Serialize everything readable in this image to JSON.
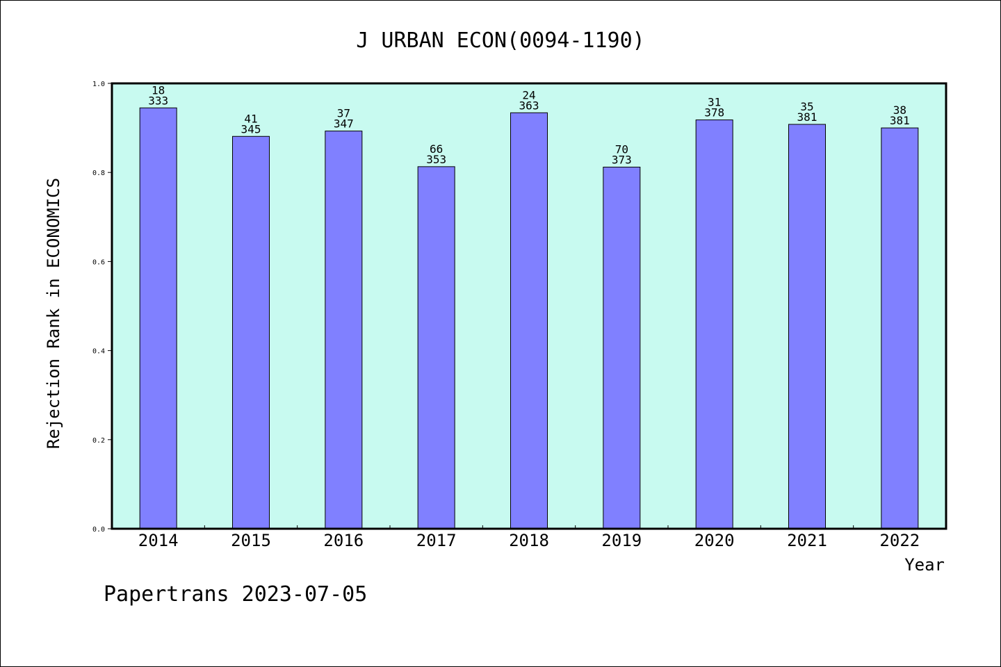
{
  "chart_data": {
    "type": "bar",
    "title": "J URBAN ECON(0094-1190)",
    "xlabel": "Year",
    "ylabel": "Rejection Rank in ECONOMICS",
    "ylim": [
      0.0,
      1.0
    ],
    "yticks": [
      "0.0",
      "0.2",
      "0.4",
      "0.6",
      "0.8",
      "1.0"
    ],
    "grid": false,
    "categories": [
      "2014",
      "2015",
      "2016",
      "2017",
      "2018",
      "2019",
      "2020",
      "2021",
      "2022"
    ],
    "values": [
      0.945,
      0.881,
      0.893,
      0.813,
      0.934,
      0.812,
      0.918,
      0.908,
      0.9
    ],
    "rank": [
      "18",
      "41",
      "37",
      "66",
      "24",
      "70",
      "31",
      "35",
      "38"
    ],
    "total": [
      "333",
      "345",
      "347",
      "353",
      "363",
      "373",
      "378",
      "381",
      "381"
    ],
    "colors": {
      "plot_background": "#c8faf0",
      "bar_fill": "#8080ff",
      "bar_stroke": "#000000"
    }
  },
  "footer": "Papertrans 2023-07-05"
}
